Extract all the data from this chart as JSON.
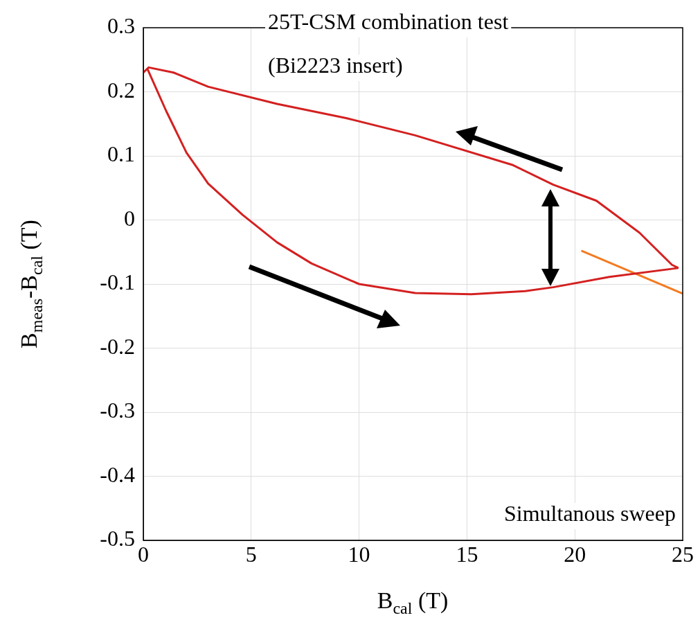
{
  "chart_data": {
    "type": "line",
    "xlabel": "B$_{cal}$ (T)",
    "ylabel": "B$_{meas}$-B$_{cal}$ (T)",
    "xlim": [
      0,
      25
    ],
    "ylim": [
      -0.5,
      0.3
    ],
    "xticks": [
      0,
      5,
      10,
      15,
      20,
      25
    ],
    "yticks": [
      -0.5,
      -0.4,
      -0.3,
      -0.2,
      -0.1,
      0,
      0.1,
      0.2,
      0.3
    ],
    "grid": true,
    "legend": false,
    "marker": "none",
    "line_style": "solid",
    "annotations": [
      "25T-CSM combination test",
      "(Bi2223 insert)",
      "Simultanous sweep"
    ],
    "series": [
      {
        "color": "#d42020",
        "x": [
          0.2,
          1.06,
          2.0,
          3.0,
          4.6,
          6.2,
          7.8,
          10,
          12.6,
          15.2,
          17.7,
          19,
          21.6,
          24.8
        ],
        "values": [
          0.235,
          0.17,
          0.105,
          0.057,
          0.008,
          -0.035,
          -0.068,
          -0.1,
          -0.114,
          -0.116,
          -0.111,
          -0.105,
          -0.089,
          -0.075
        ]
      },
      {
        "color": "#f47a20",
        "x": [
          20.3,
          25
        ],
        "values": [
          -0.048,
          -0.115
        ]
      },
      {
        "color": "#d42020",
        "x": [
          24.8,
          24.5,
          23,
          21,
          19,
          17.1,
          12.6,
          9.4,
          6.2,
          3.0,
          1.4,
          0.25,
          0
        ],
        "values": [
          -0.075,
          -0.07,
          -0.02,
          0.03,
          0.055,
          0.086,
          0.132,
          0.159,
          0.181,
          0.208,
          0.23,
          0.238,
          0.23
        ]
      }
    ]
  }
}
